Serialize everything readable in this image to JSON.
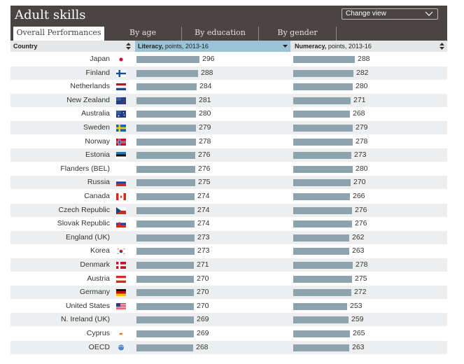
{
  "header": {
    "title": "Adult skills",
    "change_view_label": "Change view",
    "tabs": [
      {
        "label": "Overall Performances",
        "active": true
      },
      {
        "label": "By age",
        "active": false
      },
      {
        "label": "By education",
        "active": false
      },
      {
        "label": "By gender",
        "active": false
      }
    ]
  },
  "columns": {
    "country": "Country",
    "literacy_bold": "Literacy,",
    "literacy_rest": " points, 2013-16",
    "numeracy_bold": "Numeracy,",
    "numeracy_rest": " points, 2013-16"
  },
  "colors": {
    "header_bg": "#4a4442",
    "bar": "#8da3ae",
    "active_column": "#9bc3d8"
  },
  "chart_data": {
    "type": "bar",
    "orientation": "horizontal",
    "sorted_by": "Literacy",
    "categories": [
      "Japan",
      "Finland",
      "Netherlands",
      "New Zealand",
      "Australia",
      "Sweden",
      "Norway",
      "Estonia",
      "Flanders (BEL)",
      "Russia",
      "Canada",
      "Czech Republic",
      "Slovak Republic",
      "England (UK)",
      "Korea",
      "Denmark",
      "Austria",
      "Germany",
      "United States",
      "N. Ireland (UK)",
      "Cyprus",
      "OECD"
    ],
    "flags": [
      "japan-flag",
      "finland-flag",
      "netherlands-flag",
      "new-zealand-flag",
      "australia-flag",
      "sweden-flag",
      "norway-flag",
      "estonia-flag",
      "flanders-flag",
      "russia-flag",
      "canada-flag",
      "czech-republic-flag",
      "slovakia-flag",
      "england-flag",
      "korea-flag",
      "denmark-flag",
      "austria-flag",
      "germany-flag",
      "united-states-flag",
      "northern-ireland-flag",
      "cyprus-flag",
      "oecd-logo"
    ],
    "series": [
      {
        "name": "Literacy",
        "values": [
          296,
          288,
          284,
          281,
          280,
          279,
          278,
          276,
          276,
          275,
          274,
          274,
          274,
          273,
          273,
          271,
          270,
          270,
          270,
          269,
          269,
          268
        ]
      },
      {
        "name": "Numeracy",
        "values": [
          288,
          282,
          280,
          271,
          268,
          279,
          278,
          273,
          280,
          270,
          266,
          276,
          276,
          262,
          263,
          278,
          275,
          272,
          253,
          259,
          265,
          263
        ]
      }
    ]
  }
}
